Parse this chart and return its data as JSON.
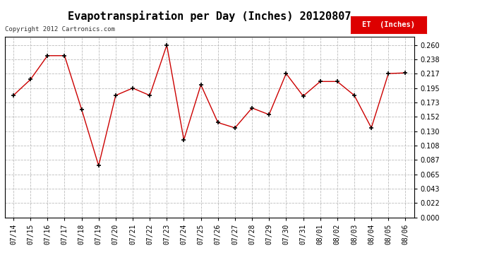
{
  "title": "Evapotranspiration per Day (Inches) 20120807",
  "copyright_text": "Copyright 2012 Cartronics.com",
  "legend_label": "ET  (Inches)",
  "dates": [
    "07/14",
    "07/15",
    "07/16",
    "07/17",
    "07/18",
    "07/19",
    "07/20",
    "07/21",
    "07/22",
    "07/23",
    "07/24",
    "07/25",
    "07/26",
    "07/27",
    "07/28",
    "07/29",
    "07/30",
    "07/31",
    "08/01",
    "08/02",
    "08/03",
    "08/04",
    "08/05",
    "08/06"
  ],
  "values": [
    0.184,
    0.208,
    0.244,
    0.244,
    0.163,
    0.078,
    0.184,
    0.195,
    0.184,
    0.26,
    0.117,
    0.2,
    0.143,
    0.135,
    0.165,
    0.155,
    0.217,
    0.183,
    0.205,
    0.205,
    0.184,
    0.135,
    0.217,
    0.218
  ],
  "line_color": "#cc0000",
  "marker_color": "#000000",
  "bg_color": "#ffffff",
  "grid_color": "#bbbbbb",
  "ytick_values": [
    0.0,
    0.022,
    0.043,
    0.065,
    0.087,
    0.108,
    0.13,
    0.152,
    0.173,
    0.195,
    0.217,
    0.238,
    0.26
  ],
  "ylim": [
    0.0,
    0.272
  ],
  "title_fontsize": 11,
  "tick_fontsize": 7,
  "legend_bg": "#dd0000",
  "legend_text_color": "#ffffff"
}
